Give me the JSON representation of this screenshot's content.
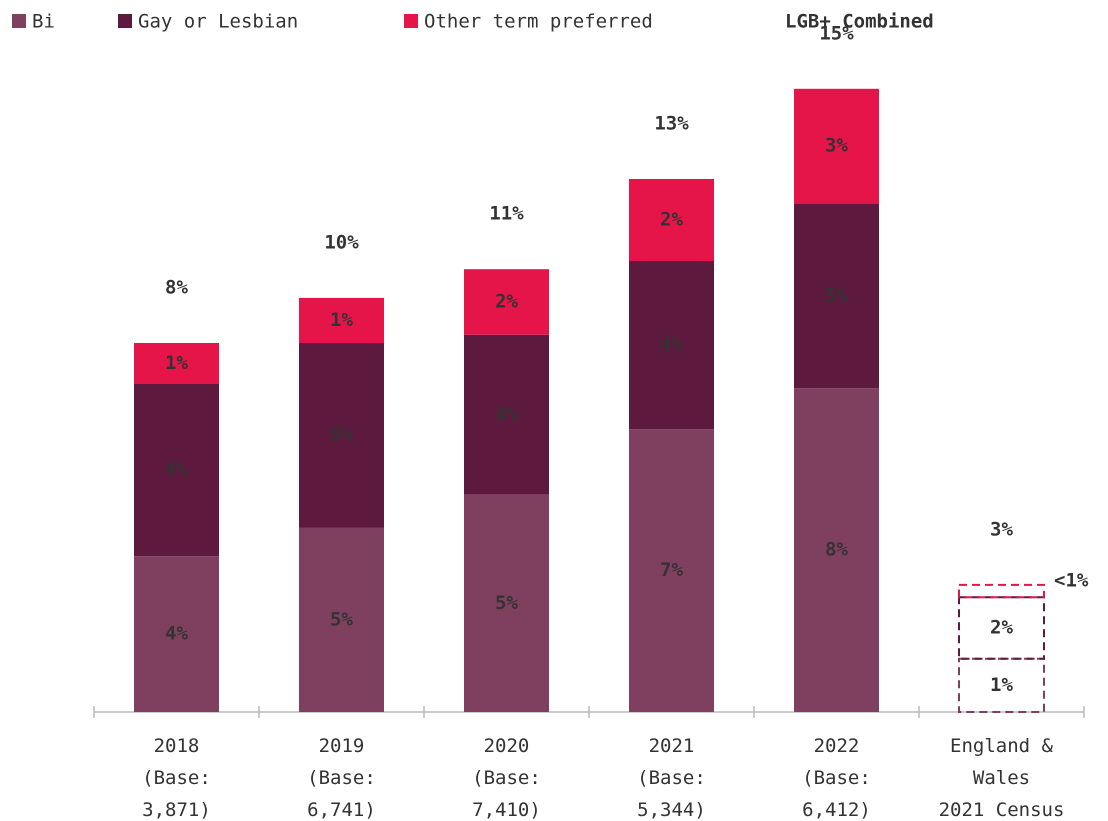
{
  "chart_data": {
    "type": "stacked_bar",
    "categories": [
      "2018\n(Base:\n3,871)",
      "2019\n(Base:\n6,741)",
      "2020\n(Base:\n7,410)",
      "2021\n(Base:\n5,344)",
      "2022\n(Base:\n6,412)",
      "England &\nWales\n2021 Census"
    ],
    "series": [
      {
        "name": "Bi",
        "color": "#7f4060",
        "values": [
          3.8,
          4.5,
          5.3,
          6.9,
          7.9,
          1.3
        ],
        "value_labels": [
          "4%",
          "5%",
          "5%",
          "7%",
          "8%",
          "1%"
        ]
      },
      {
        "name": "Gay or Lesbian",
        "color": "#5e1a3e",
        "values": [
          4.2,
          4.5,
          3.9,
          4.1,
          4.5,
          1.5
        ],
        "value_labels": [
          "4%",
          "5%",
          "4%",
          "4%",
          "5%",
          "2%"
        ]
      },
      {
        "name": "Other term preferred",
        "color": "#e5154a",
        "values": [
          1.0,
          1.1,
          1.6,
          2.0,
          2.8,
          0.3
        ],
        "value_labels": [
          "1%",
          "1%",
          "2%",
          "2%",
          "3%",
          "<1%"
        ]
      }
    ],
    "totals": {
      "name": "LGB+ Combined",
      "color": "#e5154a",
      "values": [
        8,
        10,
        11,
        13,
        15,
        3
      ],
      "value_labels": [
        "8%",
        "10%",
        "11%",
        "13%",
        "15%",
        "3%"
      ]
    },
    "dashed": [
      false,
      false,
      false,
      false,
      false,
      true
    ],
    "ylim": [
      0,
      15
    ]
  }
}
